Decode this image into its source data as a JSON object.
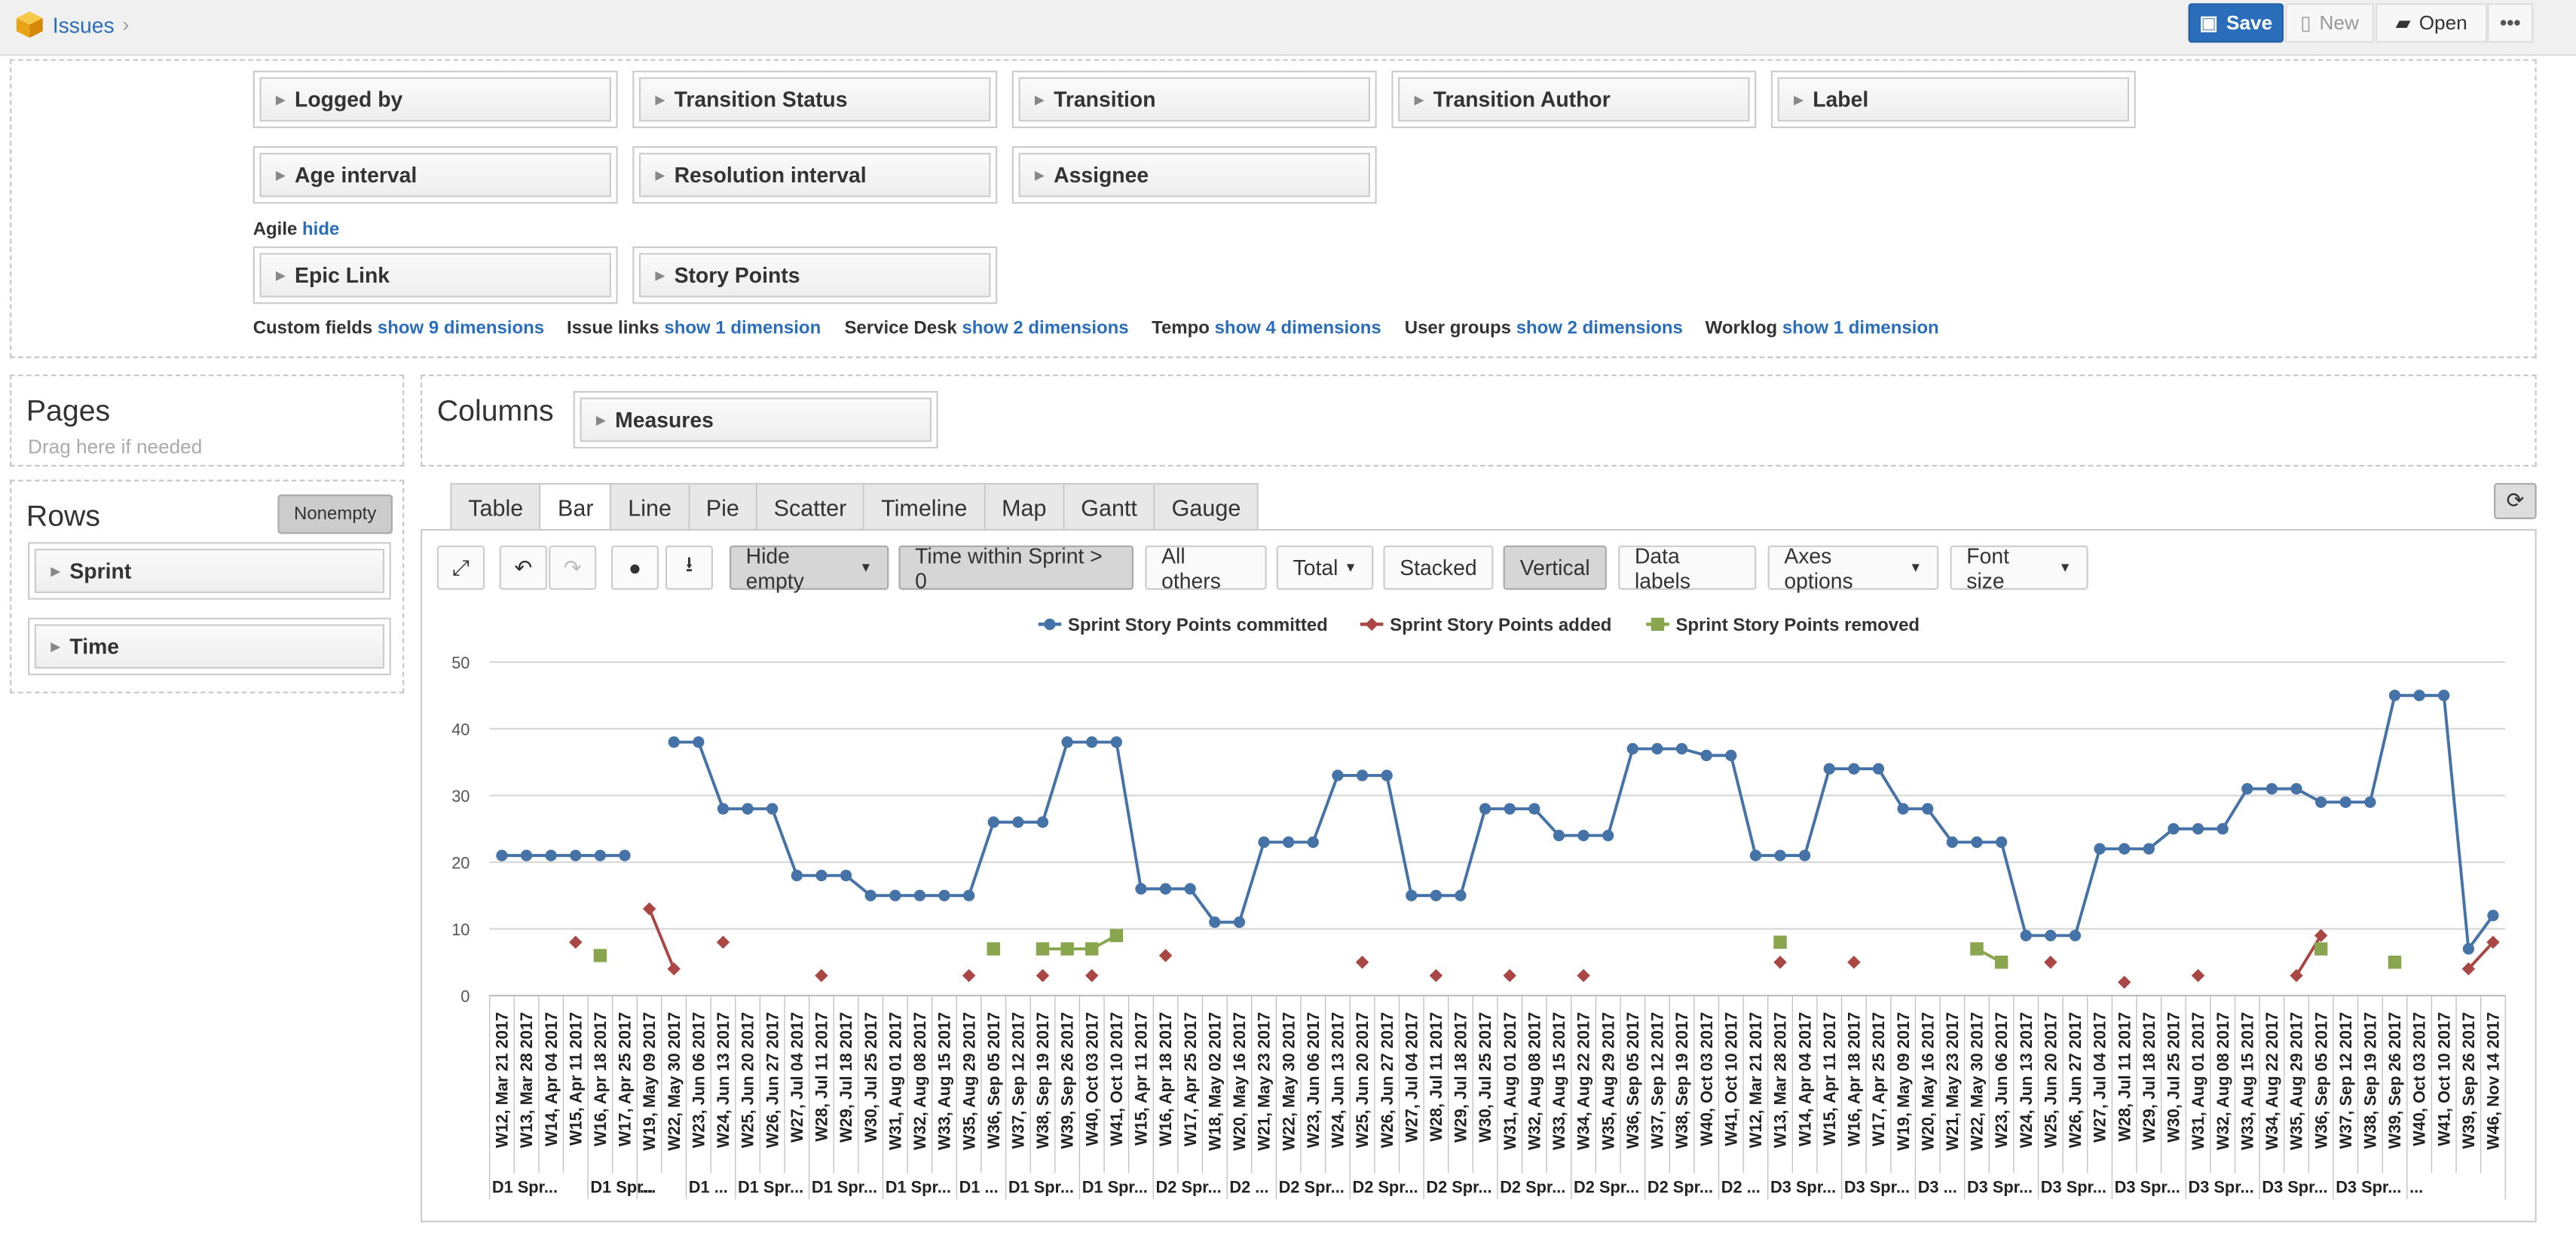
{
  "topbar": {
    "app_title": "Issues",
    "save": "Save",
    "new": "New",
    "open": "Open",
    "more": "•••"
  },
  "dimensions": {
    "row1": [
      "Logged by",
      "Transition Status",
      "Transition",
      "Transition Author",
      "Label"
    ],
    "row2": [
      "Age interval",
      "Resolution interval",
      "Assignee"
    ],
    "agile_label": "Agile",
    "agile_hide": "hide",
    "row3": [
      "Epic Link",
      "Story Points"
    ],
    "more_groups": [
      {
        "label": "Custom fields",
        "link": "show 9 dimensions"
      },
      {
        "label": "Issue links",
        "link": "show 1 dimension"
      },
      {
        "label": "Service Desk",
        "link": "show 2 dimensions"
      },
      {
        "label": "Tempo",
        "link": "show 4 dimensions"
      },
      {
        "label": "User groups",
        "link": "show 2 dimensions"
      },
      {
        "label": "Worklog",
        "link": "show 1 dimension"
      }
    ]
  },
  "pages": {
    "title": "Pages",
    "hint": "Drag here if needed"
  },
  "rows": {
    "title": "Rows",
    "nonempty": "Nonempty",
    "items": [
      "Sprint",
      "Time"
    ]
  },
  "columns": {
    "title": "Columns",
    "items": [
      "Measures"
    ]
  },
  "tabs": [
    "Table",
    "Bar",
    "Line",
    "Pie",
    "Scatter",
    "Timeline",
    "Map",
    "Gantt",
    "Gauge"
  ],
  "active_tab": "Bar",
  "toolbar": {
    "hide_empty": "Hide empty",
    "filter": "Time within Sprint > 0",
    "all_others": "All others",
    "total": "Total",
    "stacked": "Stacked",
    "vertical": "Vertical",
    "data_labels": "Data labels",
    "axes_options": "Axes options",
    "font_size": "Font size"
  },
  "colors": {
    "committed": "#4572a7",
    "added": "#aa4643",
    "removed": "#89a54e",
    "accent": "#2a6ebb"
  },
  "chart_data": {
    "type": "line",
    "ylim": [
      0,
      50
    ],
    "yticks": [
      0,
      10,
      20,
      30,
      40,
      50
    ],
    "legend_position": "top-center",
    "categories": [
      "W12, Mar 21 2017",
      "W13, Mar 28 2017",
      "W14, Apr 04 2017",
      "W15, Apr 11 2017",
      "W16, Apr 18 2017",
      "W17, Apr 25 2017",
      "W19, May 09 2017",
      "W22, May 30 2017",
      "W23, Jun 06 2017",
      "W24, Jun 13 2017",
      "W25, Jun 20 2017",
      "W26, Jun 27 2017",
      "W27, Jul 04 2017",
      "W28, Jul 11 2017",
      "W29, Jul 18 2017",
      "W30, Jul 25 2017",
      "W31, Aug 01 2017",
      "W32, Aug 08 2017",
      "W33, Aug 15 2017",
      "W35, Aug 29 2017",
      "W36, Sep 05 2017",
      "W37, Sep 12 2017",
      "W38, Sep 19 2017",
      "W39, Sep 26 2017",
      "W40, Oct 03 2017",
      "W41, Oct 10 2017",
      "W15, Apr 11 2017",
      "W16, Apr 18 2017",
      "W17, Apr 25 2017",
      "W18, May 02 2017",
      "W20, May 16 2017",
      "W21, May 23 2017",
      "W22, May 30 2017",
      "W23, Jun 06 2017",
      "W24, Jun 13 2017",
      "W25, Jun 20 2017",
      "W26, Jun 27 2017",
      "W27, Jul 04 2017",
      "W28, Jul 11 2017",
      "W29, Jul 18 2017",
      "W30, Jul 25 2017",
      "W31, Aug 01 2017",
      "W32, Aug 08 2017",
      "W33, Aug 15 2017",
      "W34, Aug 22 2017",
      "W35, Aug 29 2017",
      "W36, Sep 05 2017",
      "W37, Sep 12 2017",
      "W38, Sep 19 2017",
      "W40, Oct 03 2017",
      "W41, Oct 10 2017",
      "W12, Mar 21 2017",
      "W13, Mar 28 2017",
      "W14, Apr 04 2017",
      "W15, Apr 11 2017",
      "W16, Apr 18 2017",
      "W17, Apr 25 2017",
      "W19, May 09 2017",
      "W20, May 16 2017",
      "W21, May 23 2017",
      "W22, May 30 2017",
      "W23, Jun 06 2017",
      "W24, Jun 13 2017",
      "W25, Jun 20 2017",
      "W26, Jun 27 2017",
      "W27, Jul 04 2017",
      "W28, Jul 11 2017",
      "W29, Jul 18 2017",
      "W30, Jul 25 2017",
      "W31, Aug 01 2017",
      "W32, Aug 08 2017",
      "W33, Aug 15 2017",
      "W34, Aug 22 2017",
      "W35, Aug 29 2017",
      "W36, Sep 05 2017",
      "W37, Sep 12 2017",
      "W38, Sep 19 2017",
      "W39, Sep 26 2017",
      "W40, Oct 03 2017",
      "W41, Oct 10 2017",
      "W39, Sep 26 2017",
      "W46, Nov 14 2017"
    ],
    "groups": [
      {
        "label": "D1 Spr...",
        "count": 4
      },
      {
        "label": "D1 Spr...",
        "count": 2
      },
      {
        "label": "...",
        "count": 2
      },
      {
        "label": "D1 ...",
        "count": 2
      },
      {
        "label": "D1 Spr...",
        "count": 3
      },
      {
        "label": "D1 Spr...",
        "count": 3
      },
      {
        "label": "D1 Spr...",
        "count": 3
      },
      {
        "label": "D1 ...",
        "count": 2
      },
      {
        "label": "D1 Spr...",
        "count": 3
      },
      {
        "label": "D1 Spr...",
        "count": 3
      },
      {
        "label": "D2 Spr...",
        "count": 3
      },
      {
        "label": "D2 ...",
        "count": 2
      },
      {
        "label": "D2 Spr...",
        "count": 3
      },
      {
        "label": "D2 Spr...",
        "count": 3
      },
      {
        "label": "D2 Spr...",
        "count": 3
      },
      {
        "label": "D2 Spr...",
        "count": 3
      },
      {
        "label": "D2 Spr...",
        "count": 3
      },
      {
        "label": "D2 Spr...",
        "count": 3
      },
      {
        "label": "D2 ...",
        "count": 2
      },
      {
        "label": "D3 Spr...",
        "count": 3
      },
      {
        "label": "D3 Spr...",
        "count": 3
      },
      {
        "label": "D3 ...",
        "count": 2
      },
      {
        "label": "D3 Spr...",
        "count": 3
      },
      {
        "label": "D3 Spr...",
        "count": 3
      },
      {
        "label": "D3 Spr...",
        "count": 3
      },
      {
        "label": "D3 Spr...",
        "count": 3
      },
      {
        "label": "D3 Spr...",
        "count": 3
      },
      {
        "label": "D3 Spr...",
        "count": 3
      },
      {
        "label": "...",
        "count": 1
      }
    ],
    "series": [
      {
        "name": "Sprint Story Points committed",
        "marker": "circle",
        "values": [
          21,
          21,
          21,
          21,
          21,
          21,
          null,
          38,
          38,
          28,
          28,
          28,
          18,
          18,
          18,
          15,
          15,
          15,
          15,
          15,
          26,
          26,
          26,
          38,
          38,
          38,
          16,
          16,
          16,
          11,
          11,
          23,
          23,
          23,
          33,
          33,
          33,
          15,
          15,
          15,
          28,
          28,
          28,
          24,
          24,
          24,
          37,
          37,
          37,
          36,
          36,
          21,
          21,
          21,
          34,
          34,
          34,
          28,
          28,
          23,
          23,
          23,
          9,
          9,
          9,
          22,
          22,
          22,
          25,
          25,
          25,
          31,
          31,
          31,
          29,
          29,
          29,
          45,
          45,
          45,
          7,
          12
        ]
      },
      {
        "name": "Sprint Story Points added",
        "marker": "diamond",
        "values": [
          null,
          null,
          null,
          8,
          null,
          null,
          13,
          4,
          null,
          8,
          null,
          null,
          null,
          3,
          null,
          null,
          null,
          null,
          null,
          3,
          null,
          null,
          3,
          null,
          3,
          null,
          null,
          6,
          null,
          null,
          null,
          null,
          null,
          null,
          null,
          5,
          null,
          null,
          3,
          null,
          null,
          3,
          null,
          null,
          3,
          null,
          null,
          null,
          null,
          null,
          null,
          null,
          5,
          null,
          null,
          5,
          null,
          null,
          null,
          null,
          null,
          null,
          null,
          5,
          null,
          null,
          2,
          null,
          null,
          3,
          null,
          null,
          null,
          3,
          9,
          null,
          null,
          null,
          null,
          null,
          4,
          8
        ]
      },
      {
        "name": "Sprint Story Points removed",
        "marker": "square",
        "values": [
          null,
          null,
          null,
          null,
          6,
          null,
          null,
          null,
          null,
          null,
          null,
          null,
          null,
          null,
          null,
          null,
          null,
          null,
          null,
          null,
          7,
          null,
          7,
          7,
          7,
          9,
          null,
          null,
          null,
          null,
          null,
          null,
          null,
          null,
          null,
          null,
          null,
          null,
          null,
          null,
          null,
          null,
          null,
          null,
          null,
          null,
          null,
          null,
          null,
          null,
          null,
          null,
          8,
          null,
          null,
          null,
          null,
          null,
          null,
          null,
          7,
          5,
          null,
          null,
          null,
          null,
          null,
          null,
          null,
          null,
          null,
          null,
          null,
          null,
          7,
          null,
          null,
          5,
          null,
          null,
          null,
          null
        ]
      }
    ]
  }
}
